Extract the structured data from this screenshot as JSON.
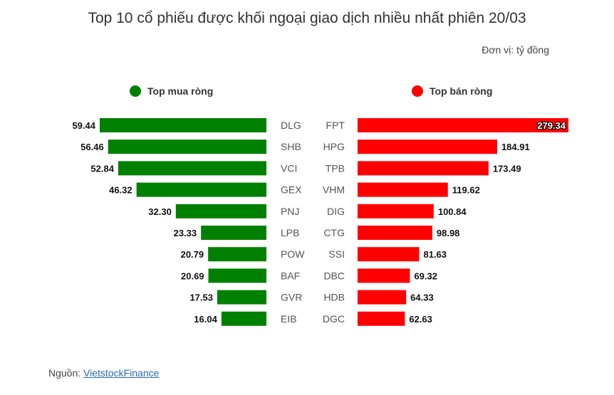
{
  "title": "Top 10 cổ phiếu được khối ngoại giao dịch nhiều nhất phiên 20/03",
  "unit_label": "Đơn vị: tỷ đồng",
  "source_label": "Nguồn: ",
  "source_link": "VietstockFinance",
  "colors": {
    "buy": "#008000",
    "sell": "#ff0000"
  },
  "chart_data": [
    {
      "type": "bar",
      "title": "",
      "legend_label": "Top mua ròng",
      "orientation": "horizontal",
      "direction": "leftward",
      "categories": [
        "DLG",
        "SHB",
        "VCI",
        "GEX",
        "PNJ",
        "LPB",
        "POW",
        "BAF",
        "GVR",
        "EIB"
      ],
      "values": [
        59.44,
        56.46,
        52.84,
        46.32,
        32.3,
        23.33,
        20.79,
        20.69,
        17.53,
        16.04
      ],
      "value_labels": [
        "59.44",
        "56.46",
        "52.84",
        "46.32",
        "32.30",
        "23.33",
        "20.79",
        "20.69",
        "17.53",
        "16.04"
      ],
      "xlim": [
        0,
        59.44
      ],
      "grid": false
    },
    {
      "type": "bar",
      "title": "",
      "legend_label": "Top bán ròng",
      "orientation": "horizontal",
      "direction": "rightward",
      "categories": [
        "FPT",
        "HPG",
        "TPB",
        "VHM",
        "DIG",
        "CTG",
        "SSI",
        "DBC",
        "HDB",
        "DGC"
      ],
      "values": [
        279.34,
        184.91,
        173.49,
        119.62,
        100.84,
        98.98,
        81.63,
        69.32,
        64.33,
        62.63
      ],
      "value_labels": [
        "279.34",
        "184.91",
        "173.49",
        "119.62",
        "100.84",
        "98.98",
        "81.63",
        "69.32",
        "64.33",
        "62.63"
      ],
      "xlim": [
        0,
        279.34
      ],
      "grid": false
    }
  ]
}
